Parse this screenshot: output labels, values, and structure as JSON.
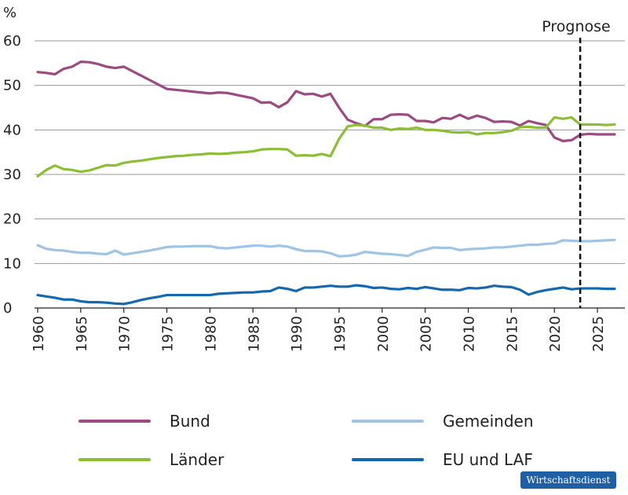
{
  "chart_data": {
    "type": "line",
    "unit_label": "%",
    "annotation": "Prognose",
    "annotation_x": 2023,
    "xlim": [
      1960,
      2027
    ],
    "ylim": [
      0,
      60
    ],
    "x_ticks": [
      "1960",
      "1965",
      "1970",
      "1975",
      "1980",
      "1985",
      "1990",
      "1995",
      "2000",
      "2005",
      "2010",
      "2015",
      "2020",
      "2025"
    ],
    "y_ticks": [
      "0",
      "10",
      "20",
      "30",
      "40",
      "50",
      "60"
    ],
    "grid": true,
    "x": [
      1960,
      1961,
      1962,
      1963,
      1964,
      1965,
      1966,
      1967,
      1968,
      1969,
      1970,
      1971,
      1972,
      1973,
      1974,
      1975,
      1976,
      1977,
      1978,
      1979,
      1980,
      1981,
      1982,
      1983,
      1984,
      1985,
      1986,
      1987,
      1988,
      1989,
      1990,
      1991,
      1992,
      1993,
      1994,
      1995,
      1996,
      1997,
      1998,
      1999,
      2000,
      2001,
      2002,
      2003,
      2004,
      2005,
      2006,
      2007,
      2008,
      2009,
      2010,
      2011,
      2012,
      2013,
      2014,
      2015,
      2016,
      2017,
      2018,
      2019,
      2020,
      2021,
      2022,
      2023,
      2024,
      2025,
      2026,
      2027
    ],
    "series": [
      {
        "name": "Bund",
        "color": "#9c4a82",
        "values": [
          53,
          52.8,
          52.5,
          53.7,
          54.2,
          55.3,
          55.2,
          54.8,
          54.2,
          53.9,
          54.2,
          53.2,
          52.2,
          51.2,
          50.2,
          49.2,
          49.0,
          48.8,
          48.6,
          48.4,
          48.2,
          48.4,
          48.3,
          47.9,
          47.5,
          47.1,
          46.1,
          46.2,
          45.1,
          46.2,
          48.7,
          48.0,
          48.1,
          47.5,
          48.1,
          45.0,
          42.3,
          41.5,
          40.9,
          42.4,
          42.4,
          43.4,
          43.5,
          43.4,
          42.0,
          42.0,
          41.7,
          42.7,
          42.5,
          43.4,
          42.5,
          43.2,
          42.7,
          41.8,
          41.9,
          41.8,
          41.0,
          42.0,
          41.5,
          41.1,
          38.3,
          37.5,
          37.7,
          38.9,
          39.1,
          39.0,
          39.0,
          39.0
        ]
      },
      {
        "name": "Länder",
        "color": "#8cbe34",
        "values": [
          29.6,
          31.0,
          32.0,
          31.2,
          31.0,
          30.6,
          30.9,
          31.5,
          32.1,
          32.0,
          32.6,
          32.9,
          33.1,
          33.4,
          33.7,
          33.9,
          34.1,
          34.2,
          34.4,
          34.5,
          34.7,
          34.6,
          34.7,
          34.9,
          35.0,
          35.2,
          35.6,
          35.7,
          35.7,
          35.6,
          34.2,
          34.3,
          34.2,
          34.6,
          34.1,
          38.0,
          40.8,
          41.1,
          41.0,
          40.5,
          40.5,
          40.0,
          40.3,
          40.2,
          40.5,
          40.0,
          40.0,
          39.8,
          39.5,
          39.4,
          39.5,
          39.0,
          39.3,
          39.3,
          39.5,
          39.8,
          40.6,
          40.7,
          40.5,
          40.5,
          42.8,
          42.5,
          42.8,
          41.2,
          41.2,
          41.2,
          41.1,
          41.2
        ]
      },
      {
        "name": "Gemeinden",
        "color": "#9fc4e4",
        "values": [
          14.1,
          13.3,
          13.0,
          12.9,
          12.6,
          12.4,
          12.4,
          12.2,
          12.1,
          12.9,
          12.0,
          12.3,
          12.6,
          12.9,
          13.3,
          13.7,
          13.8,
          13.8,
          13.9,
          13.9,
          13.9,
          13.5,
          13.4,
          13.6,
          13.8,
          14.0,
          14.0,
          13.8,
          14.0,
          13.8,
          13.2,
          12.8,
          12.8,
          12.7,
          12.3,
          11.6,
          11.7,
          12.0,
          12.6,
          12.4,
          12.2,
          12.1,
          11.9,
          11.7,
          12.6,
          13.1,
          13.6,
          13.5,
          13.5,
          13.0,
          13.2,
          13.3,
          13.4,
          13.6,
          13.6,
          13.8,
          14.0,
          14.2,
          14.2,
          14.4,
          14.5,
          15.2,
          15.1,
          15.0,
          15.0,
          15.1,
          15.2,
          15.3
        ]
      },
      {
        "name": "EU und LAF",
        "color": "#1469ae",
        "values": [
          2.9,
          2.6,
          2.3,
          1.9,
          1.9,
          1.5,
          1.3,
          1.3,
          1.2,
          1.0,
          0.9,
          1.3,
          1.8,
          2.2,
          2.5,
          2.9,
          2.9,
          2.9,
          2.9,
          2.9,
          2.9,
          3.2,
          3.3,
          3.4,
          3.5,
          3.5,
          3.7,
          3.8,
          4.6,
          4.3,
          3.8,
          4.6,
          4.6,
          4.8,
          5.0,
          4.8,
          4.8,
          5.1,
          4.9,
          4.5,
          4.6,
          4.3,
          4.2,
          4.5,
          4.3,
          4.7,
          4.4,
          4.1,
          4.1,
          4.0,
          4.5,
          4.4,
          4.6,
          5.0,
          4.8,
          4.7,
          4.1,
          3.0,
          3.6,
          4.0,
          4.3,
          4.6,
          4.2,
          4.4,
          4.4,
          4.4,
          4.3,
          4.3
        ]
      }
    ]
  },
  "badge_text": "Wirtschaftsdienst"
}
